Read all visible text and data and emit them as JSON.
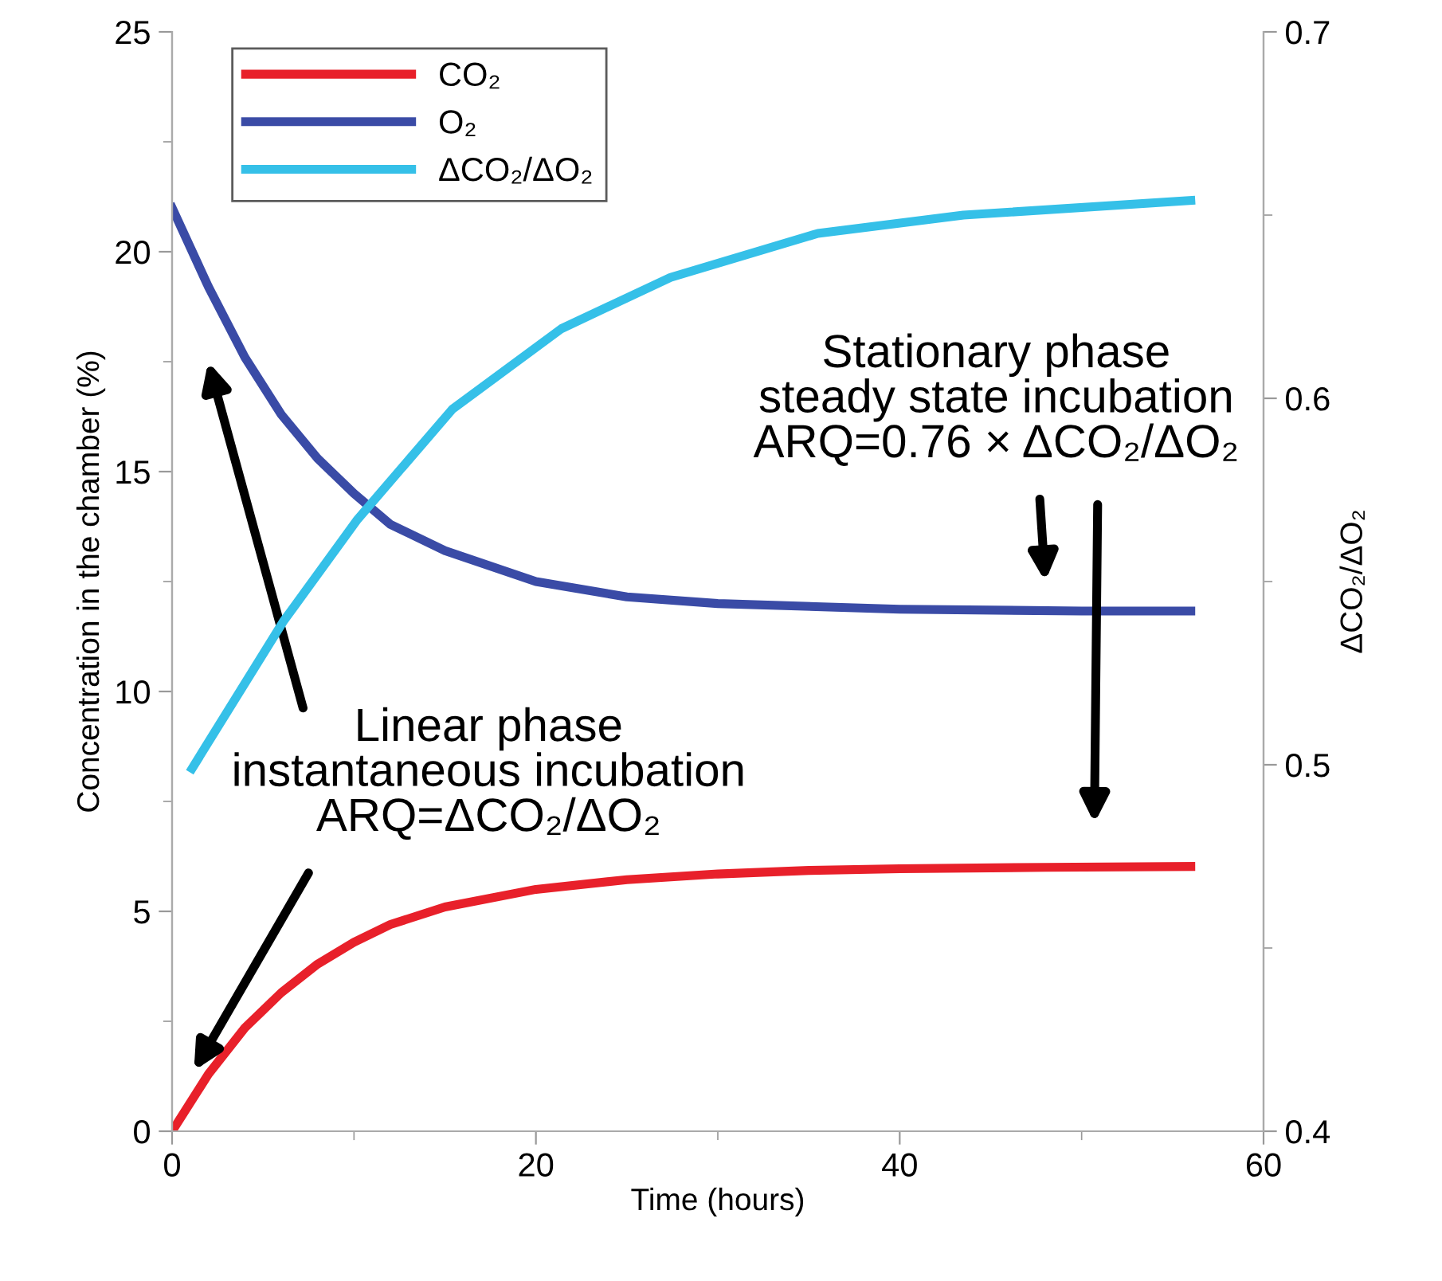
{
  "chart_data": {
    "type": "line",
    "xlabel": "Time (hours)",
    "ylabel": "Concentration in the chamber (%)",
    "y2label": "ΔCO₂/ΔO₂",
    "xlim": [
      0,
      60
    ],
    "xticks": [
      0,
      20,
      40,
      60
    ],
    "ylim": [
      0,
      25
    ],
    "yticks": [
      0,
      5,
      10,
      15,
      20,
      25
    ],
    "y2lim": [
      0.4,
      0.7
    ],
    "y2ticks": [
      0.4,
      0.5,
      0.6,
      0.7
    ],
    "legend": "top left",
    "grid": false,
    "series": [
      {
        "name": "CO₂",
        "color": "#e8202a",
        "x": [
          0,
          2,
          4,
          6,
          8,
          10,
          12,
          15,
          20,
          25,
          30,
          35,
          40,
          48,
          56
        ],
        "values": [
          0,
          1.3,
          2.35,
          3.15,
          3.8,
          4.3,
          4.7,
          5.1,
          5.5,
          5.72,
          5.85,
          5.93,
          5.97,
          6.0,
          6.02
        ]
      },
      {
        "name": "O₂",
        "color": "#3a4ba6",
        "x": [
          0,
          2,
          4,
          6,
          8,
          10,
          12,
          15,
          20,
          25,
          30,
          40,
          50,
          56
        ],
        "values": [
          21,
          19.2,
          17.6,
          16.3,
          15.3,
          14.5,
          13.8,
          13.2,
          12.5,
          12.15,
          12.0,
          11.87,
          11.83,
          11.83
        ]
      },
      {
        "name": "ΔCO₂/ΔO₂",
        "color": "#35c0e8",
        "axis": "y2",
        "x": [
          1.1,
          6.1,
          10.2,
          15.4,
          21.4,
          27.4,
          35.5,
          43.5,
          56
        ],
        "values": [
          0.499,
          0.539,
          0.567,
          0.597,
          0.619,
          0.633,
          0.645,
          0.65,
          0.654
        ]
      }
    ],
    "annotations": [
      "Linear phase\ninstantaneous incubation\nARQ=ΔCO₂/ΔO₂",
      "Stationary phase\nsteady state incubation\nARQ=0.76 × ΔCO₂/ΔO₂"
    ]
  }
}
